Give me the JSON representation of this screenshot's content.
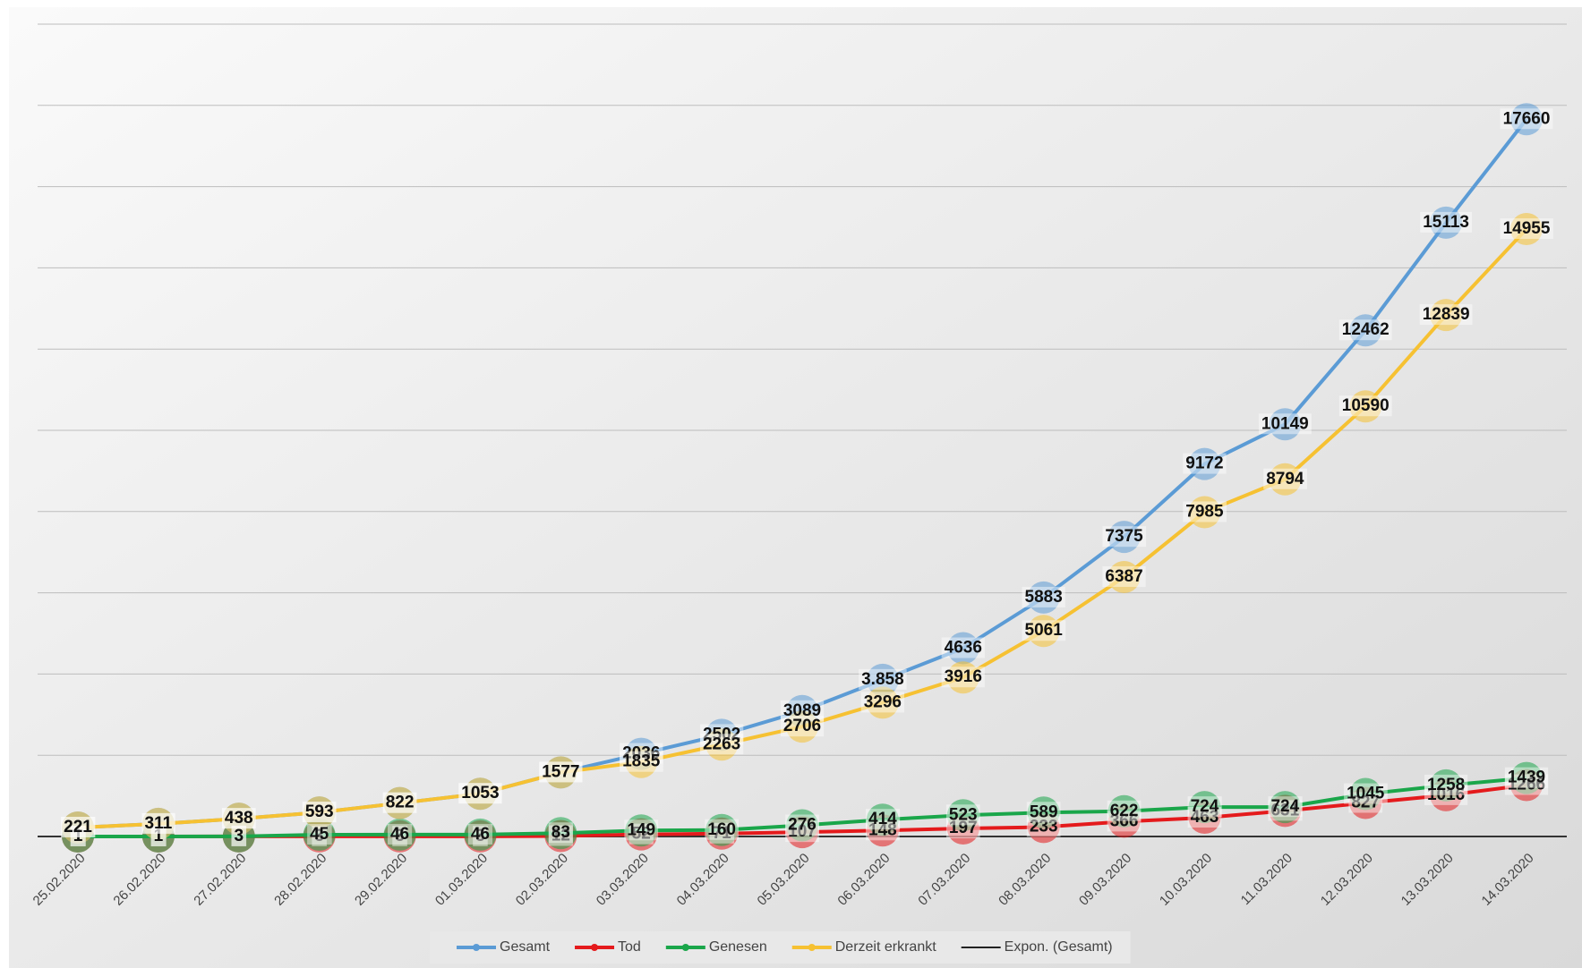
{
  "chart_data": {
    "type": "line",
    "categories": [
      "25.02.2020",
      "26.02.2020",
      "27.02.2020",
      "28.02.2020",
      "29.02.2020",
      "01.03.2020",
      "02.03.2020",
      "03.03.2020",
      "04.03.2020",
      "05.03.2020",
      "06.03.2020",
      "07.03.2020",
      "08.03.2020",
      "09.03.2020",
      "10.03.2020",
      "11.03.2020",
      "12.03.2020",
      "13.03.2020",
      "14.03.2020"
    ],
    "series": [
      {
        "name": "Gesamt",
        "color": "#5b9bd5",
        "values": [
          221,
          311,
          438,
          593,
          822,
          1053,
          1577,
          2036,
          2502,
          3089,
          3858,
          4636,
          5883,
          7375,
          9172,
          10149,
          12462,
          15113,
          17660
        ],
        "value_labels": [
          "221",
          "311",
          "438",
          "593",
          "822",
          "1053",
          "1577",
          "2036",
          "2502",
          "3089",
          "3.858",
          "4636",
          "5883",
          "7375",
          "9172",
          "10149",
          "12462",
          "15113",
          "17660"
        ]
      },
      {
        "name": "Tod",
        "color": "#e41a1c",
        "values": [
          1,
          1,
          3,
          3,
          3,
          3,
          12,
          52,
          71,
          107,
          148,
          197,
          233,
          366,
          463,
          631,
          827,
          1016,
          1266
        ]
      },
      {
        "name": "Genesen",
        "color": "#1aa64a",
        "values": [
          1,
          1,
          3,
          45,
          46,
          46,
          83,
          149,
          160,
          276,
          414,
          523,
          589,
          622,
          724,
          724,
          1045,
          1258,
          1439
        ]
      },
      {
        "name": "Derzeit erkrankt",
        "color": "#f6c132",
        "values": [
          221,
          311,
          438,
          593,
          822,
          1053,
          1577,
          1835,
          2263,
          2706,
          3296,
          3916,
          5061,
          6387,
          7985,
          8794,
          10590,
          12839,
          14955
        ]
      }
    ],
    "trendline": {
      "name": "Expon. (Gesamt)",
      "color": "#222222"
    },
    "ylim": [
      0,
      20000
    ],
    "yticks": [
      0,
      2000,
      4000,
      6000,
      8000,
      10000,
      12000,
      14000,
      16000,
      18000,
      20000
    ],
    "grid": true
  }
}
